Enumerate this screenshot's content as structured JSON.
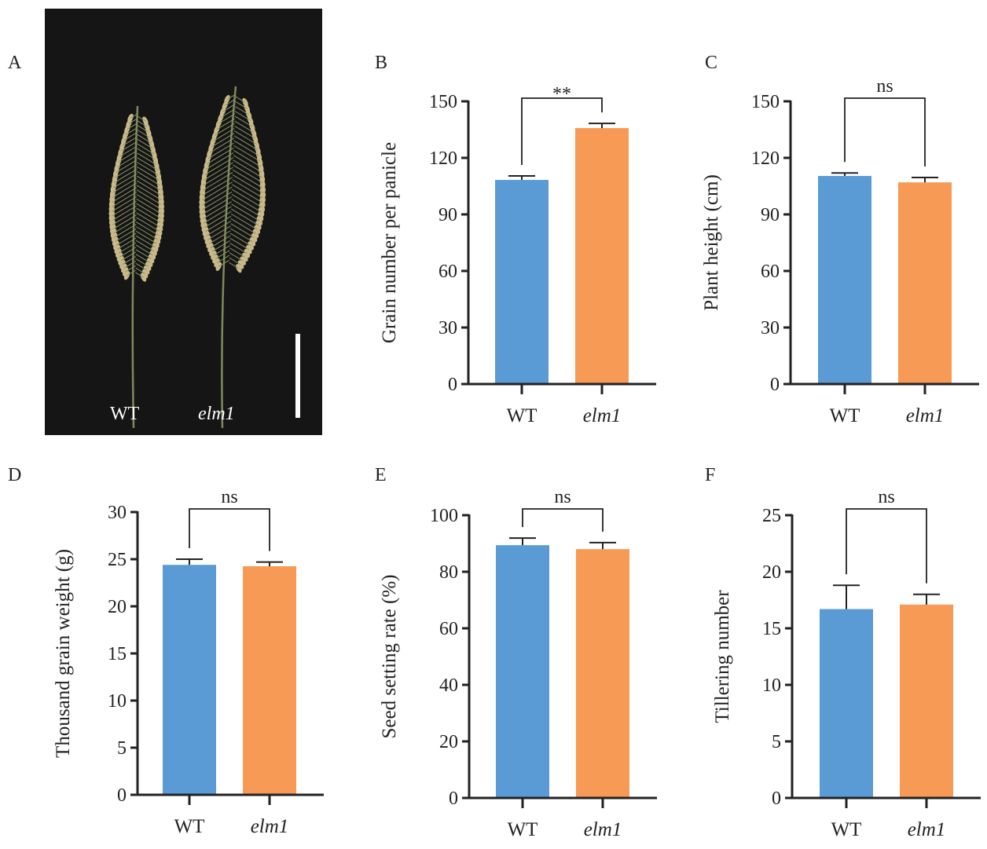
{
  "panel_labels": {
    "a": "A",
    "b": "B",
    "c": "C",
    "d": "D",
    "e": "E",
    "f": "F"
  },
  "photo": {
    "labels": [
      "WT",
      "elm1"
    ],
    "background": "#151515"
  },
  "colors": {
    "WT": "#5b9bd5",
    "elm1": "#f79a55",
    "axis": "#222222"
  },
  "chart_data": [
    {
      "id": "B",
      "type": "bar",
      "categories": [
        "WT",
        "elm1"
      ],
      "values": [
        108.3,
        135.8
      ],
      "error_upper": [
        110.4,
        138.3
      ],
      "ylabel": "Grain number per panicle",
      "ylim": [
        0,
        150
      ],
      "yticks": [
        0,
        30,
        60,
        90,
        120,
        150
      ],
      "significance": "**"
    },
    {
      "id": "C",
      "type": "bar",
      "categories": [
        "WT",
        "elm1"
      ],
      "values": [
        110.4,
        107
      ],
      "error_upper": [
        112,
        109.6
      ],
      "ylabel": "Plant height (cm)",
      "ylim": [
        0,
        150
      ],
      "yticks": [
        0,
        30,
        60,
        90,
        120,
        150
      ],
      "significance": "ns"
    },
    {
      "id": "D",
      "type": "bar",
      "categories": [
        "WT",
        "elm1"
      ],
      "values": [
        24.4,
        24.25
      ],
      "error_upper": [
        25,
        24.7
      ],
      "ylabel": "Thousand grain weight (g)",
      "ylim": [
        0,
        30
      ],
      "yticks": [
        0,
        5,
        10,
        15,
        20,
        25,
        30
      ],
      "significance": "ns"
    },
    {
      "id": "E",
      "type": "bar",
      "categories": [
        "WT",
        "elm1"
      ],
      "values": [
        89.4,
        88
      ],
      "error_upper": [
        91.9,
        90.3
      ],
      "ylabel": "Seed setting rate (%)",
      "ylim": [
        0,
        100
      ],
      "yticks": [
        0,
        20,
        40,
        60,
        80,
        100
      ],
      "significance": "ns"
    },
    {
      "id": "F",
      "type": "bar",
      "categories": [
        "WT",
        "elm1"
      ],
      "values": [
        16.7,
        17.1
      ],
      "error_upper": [
        18.8,
        18
      ],
      "ylabel": "Tillering number",
      "ylim": [
        0,
        25
      ],
      "yticks": [
        0,
        5,
        10,
        15,
        20,
        25
      ],
      "significance": "ns"
    }
  ]
}
